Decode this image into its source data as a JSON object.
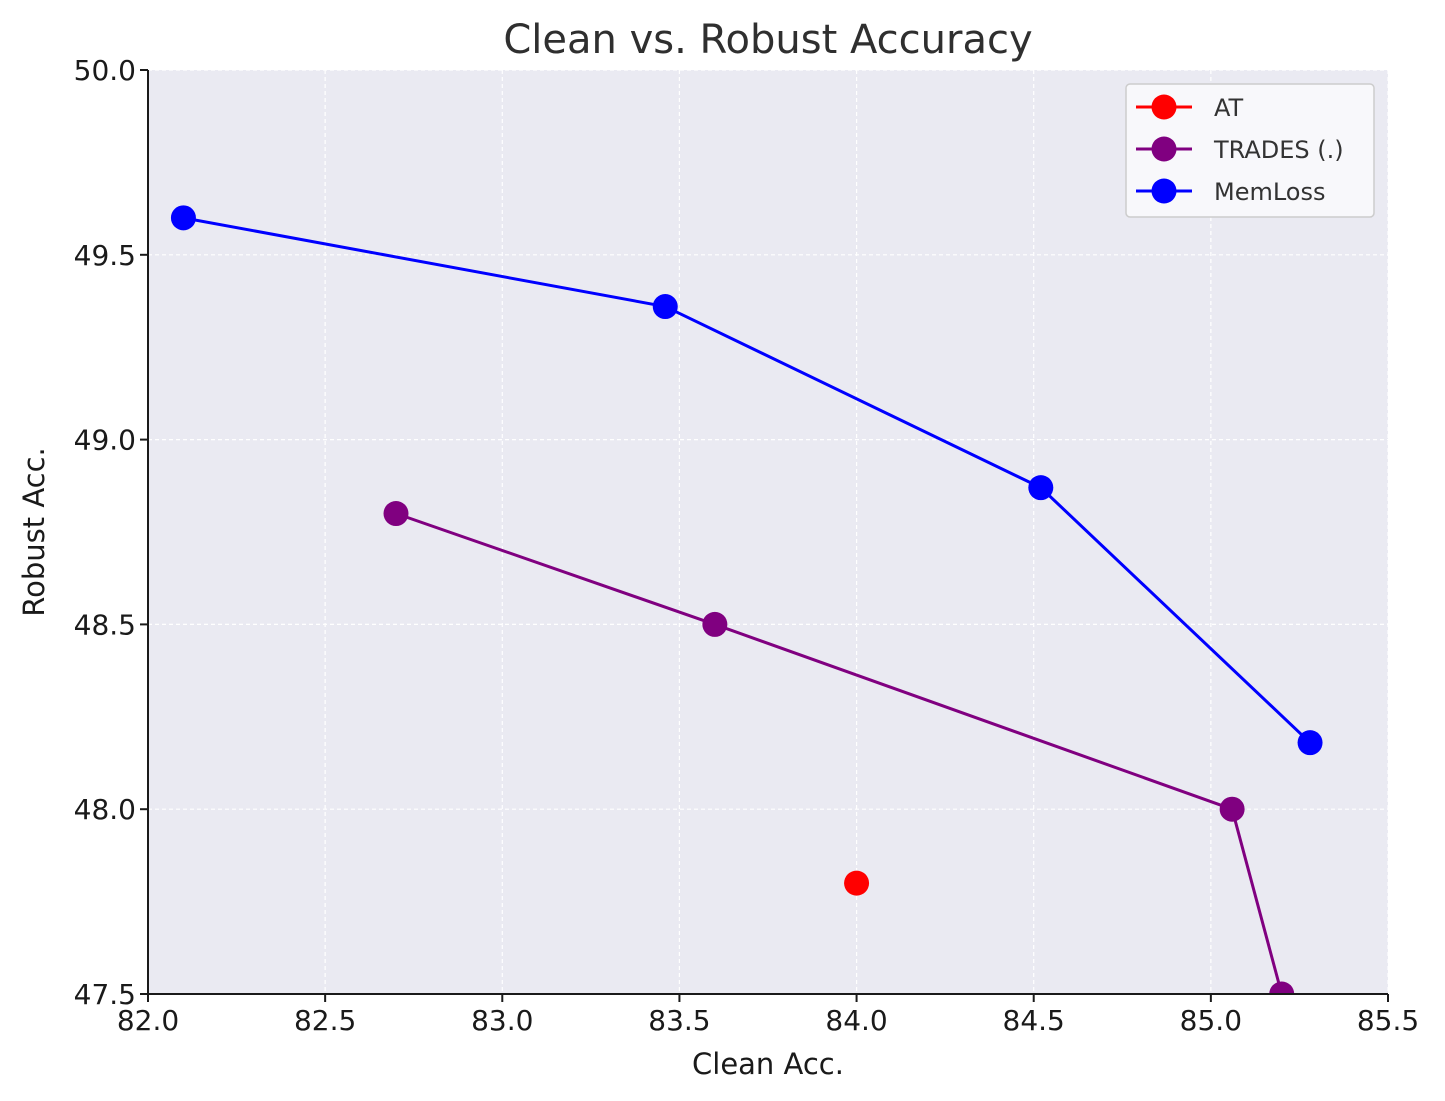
{
  "chart_data": {
    "type": "line",
    "title": "Clean vs. Robust Accuracy",
    "xlabel": "Clean Acc.",
    "ylabel": "Robust Acc.",
    "xlim": [
      82.0,
      85.5
    ],
    "ylim": [
      47.5,
      50.0
    ],
    "xticks": [
      "82.0",
      "82.5",
      "83.0",
      "83.5",
      "84.0",
      "84.5",
      "85.0",
      "85.5"
    ],
    "yticks": [
      "47.5",
      "48.0",
      "48.5",
      "49.0",
      "49.5",
      "50.0"
    ],
    "grid": true,
    "legend_position": "top-right",
    "series": [
      {
        "name": "AT",
        "color": "#ff0000",
        "x": [
          84.0
        ],
        "y": [
          47.8
        ]
      },
      {
        "name": "TRADES (.)",
        "color": "#800080",
        "x": [
          82.7,
          83.6,
          85.06,
          85.2
        ],
        "y": [
          48.8,
          48.5,
          48.0,
          47.5
        ]
      },
      {
        "name": "MemLoss",
        "color": "#0000ff",
        "x": [
          82.1,
          83.46,
          84.52,
          85.28
        ],
        "y": [
          49.6,
          49.36,
          48.87,
          48.18
        ]
      }
    ]
  }
}
